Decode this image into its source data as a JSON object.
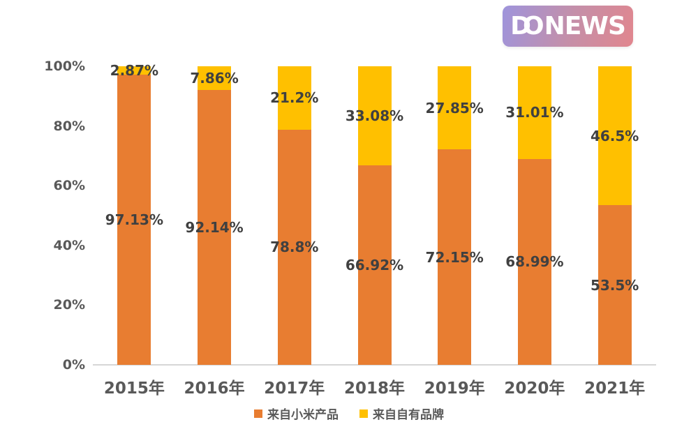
{
  "logo": {
    "d": "D",
    "o": "O",
    "rest": "NEWS",
    "gradient_start": "#9E94DC",
    "gradient_end": "#E1868E",
    "text_color": "#FFFFFF"
  },
  "chart_data": {
    "type": "bar",
    "stacked": true,
    "title": "",
    "categories": [
      "2015年",
      "2016年",
      "2017年",
      "2018年",
      "2019年",
      "2020年",
      "2021年"
    ],
    "series": [
      {
        "name": "来自小米产品",
        "color": "#E87D31",
        "values": [
          97.13,
          92.14,
          78.8,
          66.92,
          72.15,
          68.99,
          53.5
        ]
      },
      {
        "name": "来自自有品牌",
        "color": "#FFC000",
        "values": [
          2.87,
          7.86,
          21.2,
          33.08,
          27.85,
          31.01,
          46.5
        ]
      }
    ],
    "yticks": [
      "100%",
      "80%",
      "60%",
      "40%",
      "20%",
      "0%"
    ],
    "ylim": [
      0,
      100
    ],
    "unit": "%",
    "grid": false,
    "data_labels": true,
    "legend_position": "bottom",
    "axis_line_color": "#D6D6D6",
    "data_label_color": "#404040",
    "tick_label_color": "#595959"
  }
}
